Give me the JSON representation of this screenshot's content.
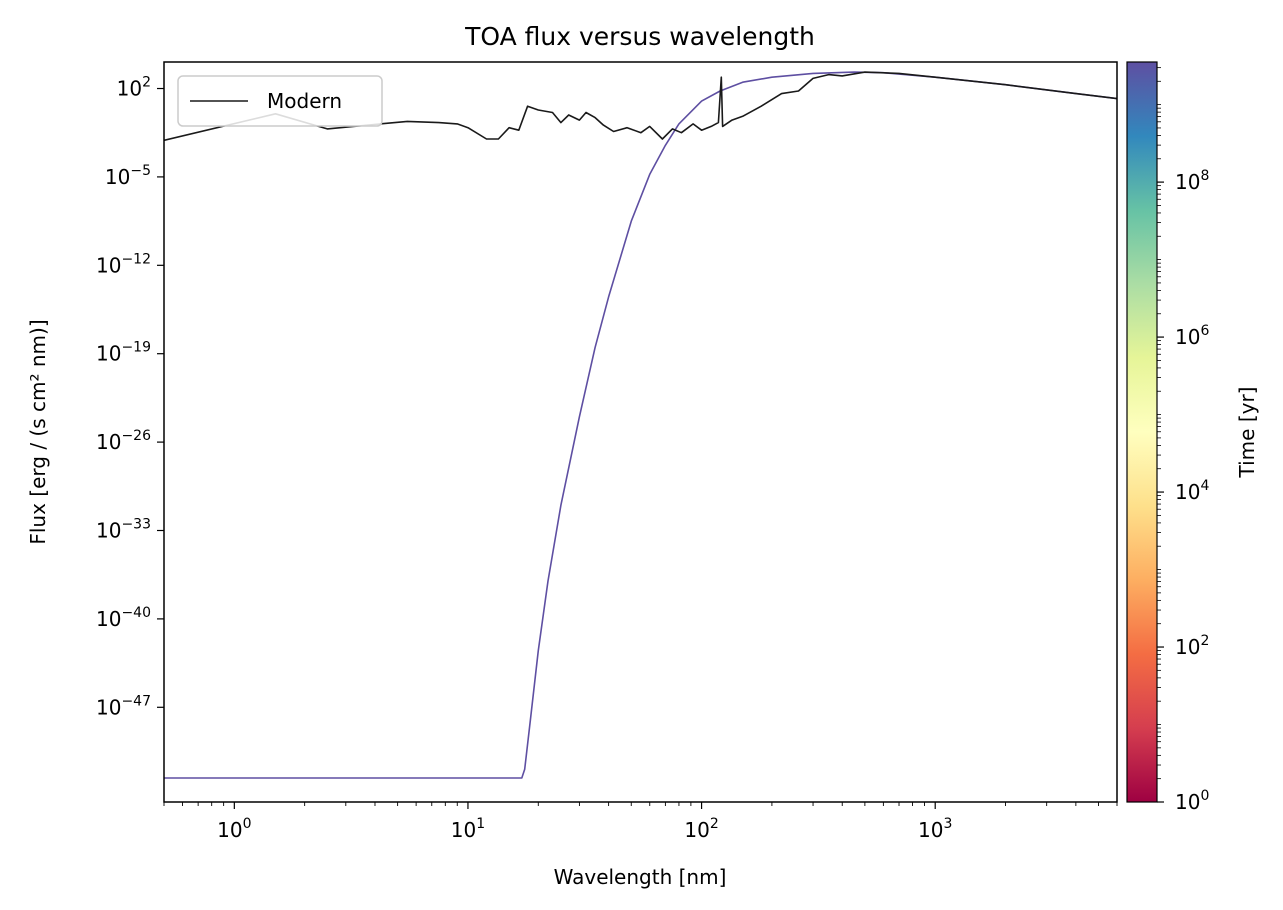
{
  "chart_data": {
    "type": "line",
    "title": "TOA flux versus wavelength",
    "xlabel": "Wavelength [nm]",
    "ylabel": "Flux [erg / (s cm² nm)]",
    "xscale": "log",
    "yscale": "log",
    "xlim": [
      0.5,
      6000
    ],
    "ylim_log10": [
      -54.5,
      4.1
    ],
    "x_ticks": [
      {
        "base": "10",
        "exp": "0",
        "value": 1
      },
      {
        "base": "10",
        "exp": "1",
        "value": 10
      },
      {
        "base": "10",
        "exp": "2",
        "value": 100
      },
      {
        "base": "10",
        "exp": "3",
        "value": 1000
      }
    ],
    "y_ticks": [
      {
        "base": "10",
        "exp": "2",
        "log": 2
      },
      {
        "base": "10",
        "exp": "−5",
        "log": -5
      },
      {
        "base": "10",
        "exp": "−12",
        "log": -12
      },
      {
        "base": "10",
        "exp": "−19",
        "log": -19
      },
      {
        "base": "10",
        "exp": "−26",
        "log": -26
      },
      {
        "base": "10",
        "exp": "−33",
        "log": -33
      },
      {
        "base": "10",
        "exp": "−40",
        "log": -40
      },
      {
        "base": "10",
        "exp": "−47",
        "log": -47
      }
    ],
    "legend": {
      "position": "top-left",
      "entries": [
        "Modern"
      ]
    },
    "grid": false,
    "series": [
      {
        "name": "Modern",
        "color": "#1a1a1a",
        "points": [
          [
            0.5,
            -2.1
          ],
          [
            1.5,
            0.0
          ],
          [
            2.5,
            -1.2
          ],
          [
            5.5,
            -0.6
          ],
          [
            7.5,
            -0.7
          ],
          [
            9.0,
            -0.8
          ],
          [
            10.0,
            -1.1
          ],
          [
            12.0,
            -2.0
          ],
          [
            13.5,
            -2.0
          ],
          [
            15.0,
            -1.1
          ],
          [
            16.5,
            -1.3
          ],
          [
            18.0,
            0.6
          ],
          [
            20.0,
            0.3
          ],
          [
            23.0,
            0.1
          ],
          [
            25.0,
            -0.7
          ],
          [
            27.0,
            -0.1
          ],
          [
            30.0,
            -0.5
          ],
          [
            32.0,
            0.1
          ],
          [
            35.0,
            -0.3
          ],
          [
            38.0,
            -0.9
          ],
          [
            42.0,
            -1.4
          ],
          [
            48.0,
            -1.1
          ],
          [
            55.0,
            -1.5
          ],
          [
            60.0,
            -1.0
          ],
          [
            68.0,
            -2.0
          ],
          [
            75.0,
            -1.2
          ],
          [
            82.0,
            -1.5
          ],
          [
            92.0,
            -0.8
          ],
          [
            100.0,
            -1.3
          ],
          [
            110.0,
            -1.0
          ],
          [
            118.0,
            -0.7
          ],
          [
            121.5,
            2.9
          ],
          [
            123.0,
            -1.0
          ],
          [
            135.0,
            -0.5
          ],
          [
            150.0,
            -0.2
          ],
          [
            180.0,
            0.6
          ],
          [
            220.0,
            1.6
          ],
          [
            260.0,
            1.8
          ],
          [
            300.0,
            2.8
          ],
          [
            350.0,
            3.1
          ],
          [
            400.0,
            3.0
          ],
          [
            500.0,
            3.3
          ],
          [
            700.0,
            3.2
          ],
          [
            1000.0,
            2.9
          ],
          [
            2000.0,
            2.3
          ],
          [
            4000.0,
            1.6
          ],
          [
            6000.0,
            1.2
          ]
        ]
      },
      {
        "name": "",
        "color": "#5e4fa2",
        "points": [
          [
            0.5,
            -52.6
          ],
          [
            17.0,
            -52.6
          ],
          [
            17.5,
            -51.9
          ],
          [
            18.5,
            -48.0
          ],
          [
            20.0,
            -42.5
          ],
          [
            22.0,
            -37.0
          ],
          [
            25.0,
            -31.0
          ],
          [
            30.0,
            -24.0
          ],
          [
            35.0,
            -18.5
          ],
          [
            40.0,
            -14.5
          ],
          [
            50.0,
            -8.5
          ],
          [
            60.0,
            -4.8
          ],
          [
            70.0,
            -2.5
          ],
          [
            80.0,
            -0.8
          ],
          [
            100.0,
            1.0
          ],
          [
            120.0,
            1.8
          ],
          [
            150.0,
            2.5
          ],
          [
            200.0,
            2.9
          ],
          [
            300.0,
            3.2
          ],
          [
            450.0,
            3.3
          ],
          [
            600.0,
            3.25
          ],
          [
            1000.0,
            2.9
          ],
          [
            2000.0,
            2.3
          ],
          [
            4000.0,
            1.6
          ],
          [
            6000.0,
            1.2
          ]
        ]
      }
    ],
    "colorbar": {
      "label": "Time [yr]",
      "scale": "log",
      "colormap": "Spectral",
      "ticks": [
        {
          "base": "10",
          "exp": "0",
          "log": 0
        },
        {
          "base": "10",
          "exp": "2",
          "log": 2
        },
        {
          "base": "10",
          "exp": "4",
          "log": 4
        },
        {
          "base": "10",
          "exp": "6",
          "log": 6
        },
        {
          "base": "10",
          "exp": "8",
          "log": 8
        }
      ],
      "log_range": [
        0,
        9.55
      ],
      "colors": [
        "#9e0142",
        "#d53e4f",
        "#f46d43",
        "#fdae61",
        "#fee08b",
        "#ffffbf",
        "#e6f598",
        "#abdda4",
        "#66c2a5",
        "#3288bd",
        "#5e4fa2"
      ]
    }
  }
}
